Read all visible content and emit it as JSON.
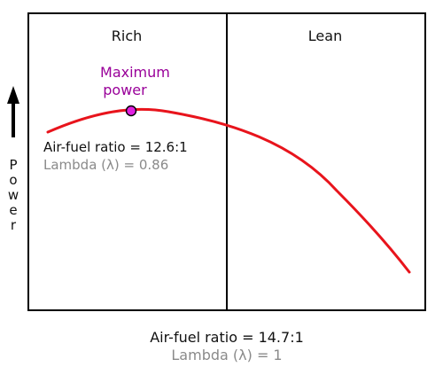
{
  "regions": {
    "rich_label": "Rich",
    "lean_label": "Lean"
  },
  "y_axis": {
    "label": "Power",
    "letters": [
      "P",
      "o",
      "w",
      "e",
      "r"
    ]
  },
  "peak": {
    "label_line1": "Maximum",
    "label_line2": "power",
    "air_fuel_ratio": "Air-fuel ratio = 12.6:1",
    "lambda": "Lambda (λ) = 0.86"
  },
  "stoichiometric": {
    "air_fuel_ratio": "Air-fuel ratio = 14.7:1",
    "lambda": "Lambda (λ) = 1"
  },
  "colors": {
    "curve": "#e8141c",
    "peak_marker_fill": "#e020e0",
    "peak_label": "#990099",
    "lambda_text": "#8a8a8a",
    "frame": "#000000"
  },
  "icons": {
    "axis_arrow": "arrow-up-icon"
  }
}
